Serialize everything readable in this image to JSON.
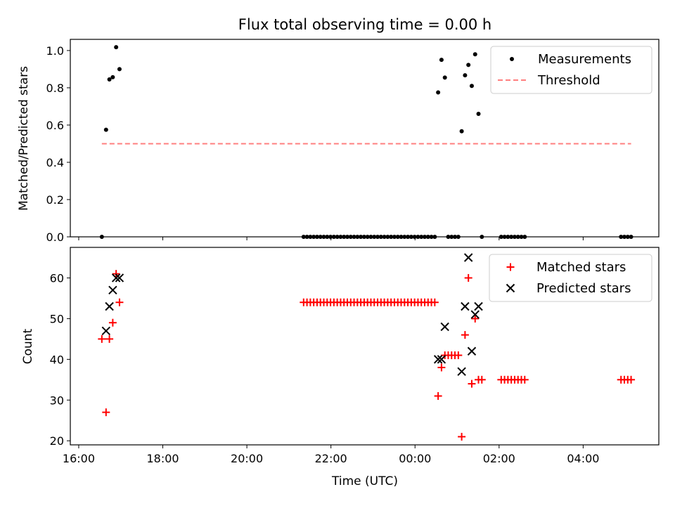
{
  "chart_data": {
    "title": "Flux total observing time = 0.00 h",
    "xlabel": "Time (UTC)",
    "x_unit": "hours since 16:00 UTC",
    "x_range": [
      -0.2,
      13.8
    ],
    "x_ticks": [
      {
        "value": 0,
        "label": "16:00"
      },
      {
        "value": 2,
        "label": "18:00"
      },
      {
        "value": 4,
        "label": "20:00"
      },
      {
        "value": 6,
        "label": "22:00"
      },
      {
        "value": 8,
        "label": "00:00"
      },
      {
        "value": 10,
        "label": "02:00"
      },
      {
        "value": 12,
        "label": "04:00"
      }
    ],
    "panels": [
      {
        "type": "scatter",
        "ylabel": "Matched/Predicted stars",
        "ylim": [
          0,
          1.06
        ],
        "y_ticks": [
          {
            "value": 0,
            "label": "0.0"
          },
          {
            "value": 0.2,
            "label": "0.2"
          },
          {
            "value": 0.4,
            "label": "0.4"
          },
          {
            "value": 0.6,
            "label": "0.6"
          },
          {
            "value": 0.8,
            "label": "0.8"
          },
          {
            "value": 1.0,
            "label": "1.0"
          }
        ],
        "legend": {
          "position": "top-right",
          "entries": [
            "Measurements",
            "Threshold"
          ]
        },
        "series": [
          {
            "name": "Measurements",
            "marker": "dot",
            "color": "#000000",
            "points": [
              [
                0.55,
                0
              ],
              [
                0.65,
                0.575
              ],
              [
                0.73,
                0.845
              ],
              [
                0.81,
                0.857
              ],
              [
                0.89,
                1.018
              ],
              [
                0.97,
                0.9
              ],
              [
                5.35,
                0
              ],
              [
                5.43,
                0
              ],
              [
                5.51,
                0
              ],
              [
                5.59,
                0
              ],
              [
                5.67,
                0
              ],
              [
                5.75,
                0
              ],
              [
                5.83,
                0
              ],
              [
                5.91,
                0
              ],
              [
                5.99,
                0
              ],
              [
                6.07,
                0
              ],
              [
                6.15,
                0
              ],
              [
                6.23,
                0
              ],
              [
                6.31,
                0
              ],
              [
                6.39,
                0
              ],
              [
                6.47,
                0
              ],
              [
                6.55,
                0
              ],
              [
                6.63,
                0
              ],
              [
                6.71,
                0
              ],
              [
                6.79,
                0
              ],
              [
                6.87,
                0
              ],
              [
                6.95,
                0
              ],
              [
                7.03,
                0
              ],
              [
                7.11,
                0
              ],
              [
                7.19,
                0
              ],
              [
                7.27,
                0
              ],
              [
                7.35,
                0
              ],
              [
                7.43,
                0
              ],
              [
                7.51,
                0
              ],
              [
                7.59,
                0
              ],
              [
                7.67,
                0
              ],
              [
                7.75,
                0
              ],
              [
                7.83,
                0
              ],
              [
                7.91,
                0
              ],
              [
                7.99,
                0
              ],
              [
                8.07,
                0
              ],
              [
                8.15,
                0
              ],
              [
                8.23,
                0
              ],
              [
                8.31,
                0
              ],
              [
                8.39,
                0
              ],
              [
                8.47,
                0
              ],
              [
                8.55,
                0.775
              ],
              [
                8.63,
                0.95
              ],
              [
                8.71,
                0.855
              ],
              [
                8.79,
                0
              ],
              [
                8.87,
                0
              ],
              [
                8.95,
                0
              ],
              [
                9.03,
                0
              ],
              [
                9.11,
                0.567
              ],
              [
                9.19,
                0.867
              ],
              [
                9.27,
                0.923
              ],
              [
                9.35,
                0.81
              ],
              [
                9.43,
                0.98
              ],
              [
                9.51,
                0.66
              ],
              [
                9.59,
                0
              ],
              [
                10.05,
                0
              ],
              [
                10.13,
                0
              ],
              [
                10.21,
                0
              ],
              [
                10.29,
                0
              ],
              [
                10.37,
                0
              ],
              [
                10.45,
                0
              ],
              [
                10.53,
                0
              ],
              [
                10.61,
                0
              ],
              [
                12.9,
                0
              ],
              [
                12.98,
                0
              ],
              [
                13.06,
                0
              ],
              [
                13.14,
                0
              ]
            ]
          },
          {
            "name": "Threshold",
            "line": "dashed",
            "color": "#ff7f7f",
            "points": [
              [
                0.55,
                0.5
              ],
              [
                13.14,
                0.5
              ]
            ]
          }
        ]
      },
      {
        "type": "scatter",
        "ylabel": "Count",
        "ylim": [
          19,
          67.5
        ],
        "y_ticks": [
          {
            "value": 20,
            "label": "20"
          },
          {
            "value": 30,
            "label": "30"
          },
          {
            "value": 40,
            "label": "40"
          },
          {
            "value": 50,
            "label": "50"
          },
          {
            "value": 60,
            "label": "60"
          }
        ],
        "legend": {
          "position": "top-right",
          "entries": [
            "Matched stars",
            "Predicted stars"
          ]
        },
        "series": [
          {
            "name": "Matched stars",
            "marker": "plus",
            "color": "#ff0000",
            "points": [
              [
                0.55,
                45
              ],
              [
                0.65,
                27
              ],
              [
                0.73,
                45
              ],
              [
                0.81,
                49
              ],
              [
                0.89,
                61
              ],
              [
                0.97,
                54
              ],
              [
                5.35,
                54
              ],
              [
                5.43,
                54
              ],
              [
                5.51,
                54
              ],
              [
                5.59,
                54
              ],
              [
                5.67,
                54
              ],
              [
                5.75,
                54
              ],
              [
                5.83,
                54
              ],
              [
                5.91,
                54
              ],
              [
                5.99,
                54
              ],
              [
                6.07,
                54
              ],
              [
                6.15,
                54
              ],
              [
                6.23,
                54
              ],
              [
                6.31,
                54
              ],
              [
                6.39,
                54
              ],
              [
                6.47,
                54
              ],
              [
                6.55,
                54
              ],
              [
                6.63,
                54
              ],
              [
                6.71,
                54
              ],
              [
                6.79,
                54
              ],
              [
                6.87,
                54
              ],
              [
                6.95,
                54
              ],
              [
                7.03,
                54
              ],
              [
                7.11,
                54
              ],
              [
                7.19,
                54
              ],
              [
                7.27,
                54
              ],
              [
                7.35,
                54
              ],
              [
                7.43,
                54
              ],
              [
                7.51,
                54
              ],
              [
                7.59,
                54
              ],
              [
                7.67,
                54
              ],
              [
                7.75,
                54
              ],
              [
                7.83,
                54
              ],
              [
                7.91,
                54
              ],
              [
                7.99,
                54
              ],
              [
                8.07,
                54
              ],
              [
                8.15,
                54
              ],
              [
                8.23,
                54
              ],
              [
                8.31,
                54
              ],
              [
                8.39,
                54
              ],
              [
                8.47,
                54
              ],
              [
                8.55,
                31
              ],
              [
                8.63,
                38
              ],
              [
                8.71,
                41
              ],
              [
                8.79,
                41
              ],
              [
                8.87,
                41
              ],
              [
                8.95,
                41
              ],
              [
                9.03,
                41
              ],
              [
                9.11,
                21
              ],
              [
                9.19,
                46
              ],
              [
                9.27,
                60
              ],
              [
                9.35,
                34
              ],
              [
                9.43,
                50
              ],
              [
                9.51,
                35
              ],
              [
                9.59,
                35
              ],
              [
                10.05,
                35
              ],
              [
                10.13,
                35
              ],
              [
                10.21,
                35
              ],
              [
                10.29,
                35
              ],
              [
                10.37,
                35
              ],
              [
                10.45,
                35
              ],
              [
                10.53,
                35
              ],
              [
                10.61,
                35
              ],
              [
                12.9,
                35
              ],
              [
                12.98,
                35
              ],
              [
                13.06,
                35
              ],
              [
                13.14,
                35
              ]
            ]
          },
          {
            "name": "Predicted stars",
            "marker": "x",
            "color": "#000000",
            "points": [
              [
                0.65,
                47
              ],
              [
                0.73,
                53
              ],
              [
                0.81,
                57
              ],
              [
                0.89,
                60
              ],
              [
                0.97,
                60
              ],
              [
                8.55,
                40
              ],
              [
                8.63,
                40
              ],
              [
                8.71,
                48
              ],
              [
                9.11,
                37
              ],
              [
                9.19,
                53
              ],
              [
                9.27,
                65
              ],
              [
                9.35,
                42
              ],
              [
                9.43,
                51
              ],
              [
                9.51,
                53
              ]
            ]
          }
        ]
      }
    ]
  }
}
